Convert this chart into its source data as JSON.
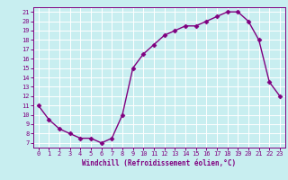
{
  "x": [
    0,
    1,
    2,
    3,
    4,
    5,
    6,
    7,
    8,
    9,
    10,
    11,
    12,
    13,
    14,
    15,
    16,
    17,
    18,
    19,
    20,
    21,
    22,
    23
  ],
  "y": [
    11,
    9.5,
    8.5,
    8,
    7.5,
    7.5,
    7,
    7.5,
    10,
    15,
    16.5,
    17.5,
    18.5,
    19,
    19.5,
    19.5,
    20,
    20.5,
    21,
    21,
    20,
    18,
    13.5,
    12
  ],
  "line_color": "#800080",
  "marker": "D",
  "marker_size": 2.5,
  "bg_color": "#c8eef0",
  "grid_color": "#ffffff",
  "xlabel": "Windchill (Refroidissement éolien,°C)",
  "xlabel_color": "#800080",
  "tick_color": "#800080",
  "spine_color": "#800080",
  "ylim": [
    6.5,
    21.5
  ],
  "xlim": [
    -0.5,
    23.5
  ],
  "yticks": [
    7,
    8,
    9,
    10,
    11,
    12,
    13,
    14,
    15,
    16,
    17,
    18,
    19,
    20,
    21
  ],
  "xticks": [
    0,
    1,
    2,
    3,
    4,
    5,
    6,
    7,
    8,
    9,
    10,
    11,
    12,
    13,
    14,
    15,
    16,
    17,
    18,
    19,
    20,
    21,
    22,
    23
  ],
  "line_width": 1.0,
  "tick_fontsize": 5.0,
  "xlabel_fontsize": 5.5
}
